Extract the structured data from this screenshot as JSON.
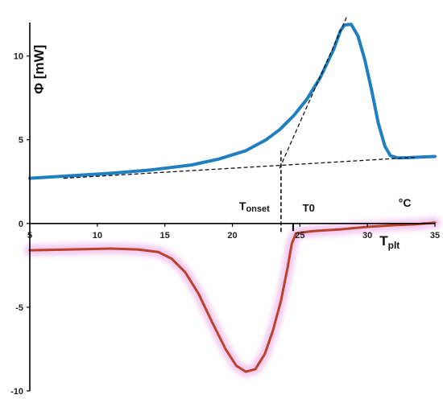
{
  "chart_data": {
    "type": "line",
    "title": "",
    "xlim": [
      5,
      35
    ],
    "ylim": [
      -10,
      12
    ],
    "x_ticks": [
      5,
      10,
      15,
      20,
      25,
      30,
      35
    ],
    "y_ticks": [
      -10,
      -5,
      0,
      5,
      10
    ],
    "grid": false,
    "legend": "none",
    "ylabel": "Φ  [mW]",
    "series": [
      {
        "color": "#1f7fc1",
        "points": [
          [
            5,
            2.7
          ],
          [
            8,
            2.85
          ],
          [
            11,
            3.0
          ],
          [
            14,
            3.2
          ],
          [
            17,
            3.5
          ],
          [
            19,
            3.85
          ],
          [
            21,
            4.35
          ],
          [
            22.5,
            5.0
          ],
          [
            23.5,
            5.6
          ],
          [
            24.5,
            6.4
          ],
          [
            25.5,
            7.4
          ],
          [
            26.5,
            8.7
          ],
          [
            27.5,
            10.4
          ],
          [
            28,
            11.5
          ],
          [
            28.3,
            11.85
          ],
          [
            28.8,
            11.9
          ],
          [
            29.3,
            11.2
          ],
          [
            29.8,
            9.8
          ],
          [
            30.3,
            8.0
          ],
          [
            30.8,
            6.0
          ],
          [
            31.3,
            4.6
          ],
          [
            31.7,
            4.05
          ],
          [
            32.2,
            3.92
          ],
          [
            33,
            3.93
          ],
          [
            35,
            4.0
          ]
        ]
      },
      {
        "color": "#b8432a",
        "points": [
          [
            5,
            -1.6
          ],
          [
            8,
            -1.55
          ],
          [
            11,
            -1.5
          ],
          [
            13,
            -1.55
          ],
          [
            14.5,
            -1.7
          ],
          [
            15.5,
            -2.1
          ],
          [
            16.5,
            -2.9
          ],
          [
            17.5,
            -4.2
          ],
          [
            18.5,
            -5.9
          ],
          [
            19.5,
            -7.5
          ],
          [
            20.3,
            -8.5
          ],
          [
            21,
            -8.85
          ],
          [
            21.7,
            -8.7
          ],
          [
            22.4,
            -7.8
          ],
          [
            23,
            -6.4
          ],
          [
            23.6,
            -4.6
          ],
          [
            24.1,
            -2.6
          ],
          [
            24.4,
            -1.2
          ],
          [
            24.7,
            -0.6
          ],
          [
            25,
            -0.55
          ],
          [
            26,
            -0.45
          ],
          [
            28,
            -0.35
          ],
          [
            30,
            -0.2
          ],
          [
            32,
            -0.1
          ],
          [
            33.5,
            -0.05
          ],
          [
            35,
            0.05
          ]
        ]
      }
    ],
    "constructions": {
      "baseline": [
        [
          7.5,
          2.7
        ],
        [
          33.5,
          3.95
        ]
      ],
      "tangent": [
        [
          23.5,
          3.3
        ],
        [
          28.5,
          12.4
        ]
      ],
      "onset_marker": {
        "x": 23.6,
        "y_range": [
          -0.5,
          4.5
        ]
      },
      "t0_marker": {
        "x": 24.5,
        "y_range": [
          -0.45,
          0
        ]
      }
    },
    "annotations": {
      "tonset": {
        "main": "T",
        "sub": "onset",
        "x": 20.5,
        "y": 0.8
      },
      "t0": {
        "text": "T0",
        "x": 25.2,
        "y": 0.7
      },
      "degc": {
        "text": "°C",
        "x": 32.3,
        "y": 1.0
      },
      "tplt": {
        "main": "T",
        "sub": "plt",
        "x": 30.9,
        "y": -1.3
      }
    },
    "colors": {
      "blue_curve": "#1f7fc1",
      "red_curve": "#b8432a",
      "red_glow": "#f3c6f0",
      "axes": "#000000",
      "dashed": "#111111"
    }
  }
}
